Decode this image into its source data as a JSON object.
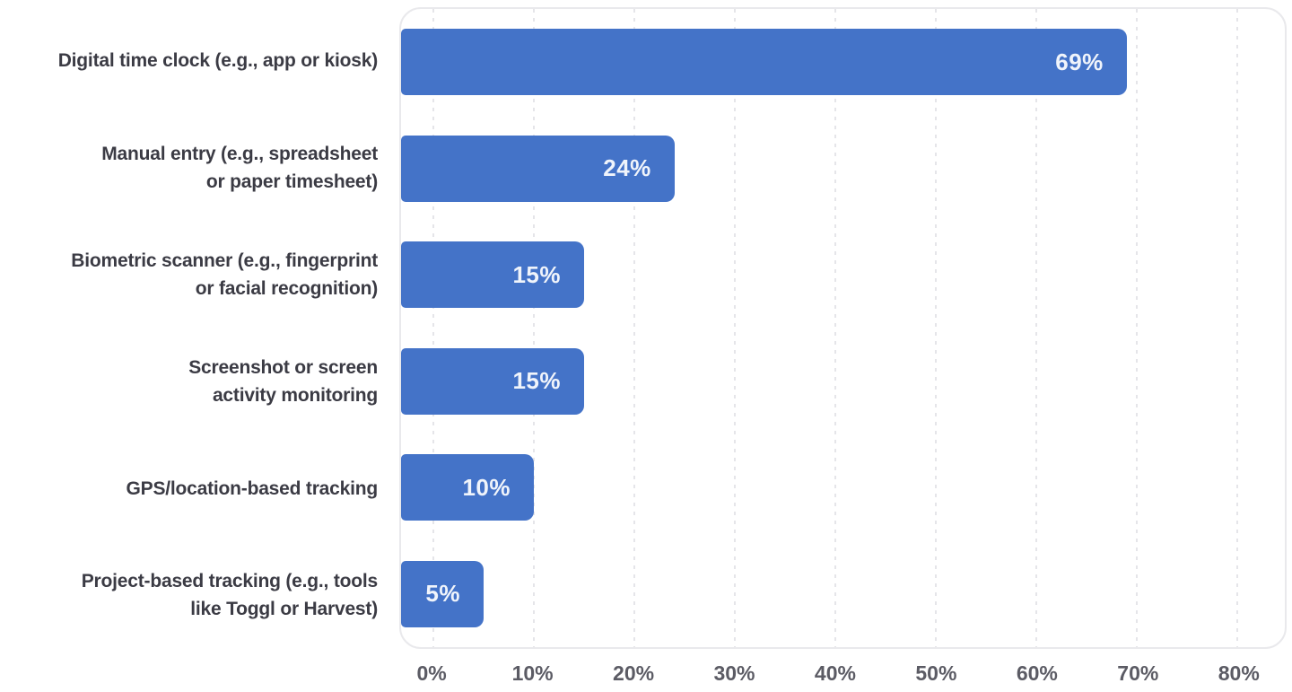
{
  "chart": {
    "bar_color": "#4473C8",
    "value_label_color": "#f0f4fb",
    "category_label_color": "#3b3b44",
    "tick_label_color": "#5b5b64",
    "gridline_color": "#e5e5e9",
    "plot_border_color": "#e9e9ec",
    "background_color": "#ffffff"
  },
  "chart_data": {
    "type": "bar",
    "orientation": "horizontal",
    "title": "",
    "xlabel": "",
    "ylabel": "",
    "xlim": [
      0,
      80
    ],
    "grid": "vertical-dashed",
    "legend_position": "none",
    "bars": [
      {
        "label": "Digital time clock (e.g., app or kiosk)",
        "label_lines": [
          "Digital time clock (e.g., app or kiosk)"
        ],
        "value": 69,
        "value_label": "69%"
      },
      {
        "label": "Manual entry (e.g., spreadsheet or paper timesheet)",
        "label_lines": [
          "Manual entry (e.g., spreadsheet",
          "or paper timesheet)"
        ],
        "value": 24,
        "value_label": "24%"
      },
      {
        "label": "Biometric scanner (e.g., fingerprint or facial recognition)",
        "label_lines": [
          "Biometric scanner (e.g., fingerprint",
          "or facial recognition)"
        ],
        "value": 15,
        "value_label": "15%"
      },
      {
        "label": "Screenshot or screen activity monitoring",
        "label_lines": [
          "Screenshot or screen",
          "activity monitoring"
        ],
        "value": 15,
        "value_label": "15%"
      },
      {
        "label": "GPS/location-based tracking",
        "label_lines": [
          "GPS/location-based tracking"
        ],
        "value": 10,
        "value_label": "10%"
      },
      {
        "label": "Project-based tracking (e.g., tools like Toggl or Harvest)",
        "label_lines": [
          "Project-based tracking (e.g., tools",
          "like Toggl or Harvest)"
        ],
        "value": 5,
        "value_label": "5%"
      }
    ],
    "x_tick_values": [
      0,
      10,
      20,
      30,
      40,
      50,
      60,
      70,
      80
    ],
    "x_tick_labels": [
      "0%",
      "10%",
      "20%",
      "30%",
      "40%",
      "50%",
      "60%",
      "70%",
      "80%"
    ]
  }
}
